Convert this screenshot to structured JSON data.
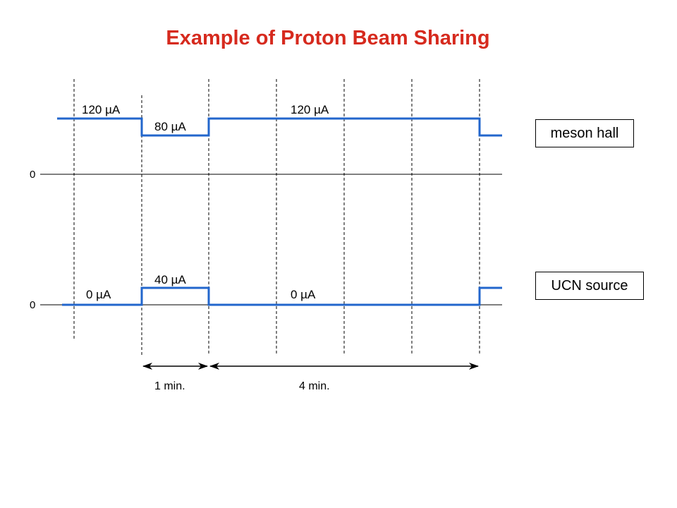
{
  "title": "Example of Proton Beam Sharing",
  "colors": {
    "title": "#d62a1e",
    "trace": "#2266cc",
    "grid": "#000000"
  },
  "meson_hall": {
    "label": "meson hall",
    "zero_label": "0",
    "segments": [
      {
        "value_label": "120 µA",
        "level_uA": 120,
        "duration_min": 1
      },
      {
        "value_label": "80 µA",
        "level_uA": 80,
        "duration_min": 1
      },
      {
        "value_label": "120 µA",
        "level_uA": 120,
        "duration_min": 4
      },
      {
        "value_label": "",
        "level_uA": 80,
        "duration_min": 0.15
      }
    ]
  },
  "ucn_source": {
    "label": "UCN source",
    "zero_label": "0",
    "segments": [
      {
        "value_label": "0 µA",
        "level_uA": 0,
        "duration_min": 1
      },
      {
        "value_label": "40 µA",
        "level_uA": 40,
        "duration_min": 1
      },
      {
        "value_label": "0 µA",
        "level_uA": 0,
        "duration_min": 4
      },
      {
        "value_label": "",
        "level_uA": 40,
        "duration_min": 0.3
      }
    ]
  },
  "intervals": [
    {
      "label": "1 min.",
      "duration_min": 1
    },
    {
      "label": "4 min.",
      "duration_min": 4
    }
  ]
}
